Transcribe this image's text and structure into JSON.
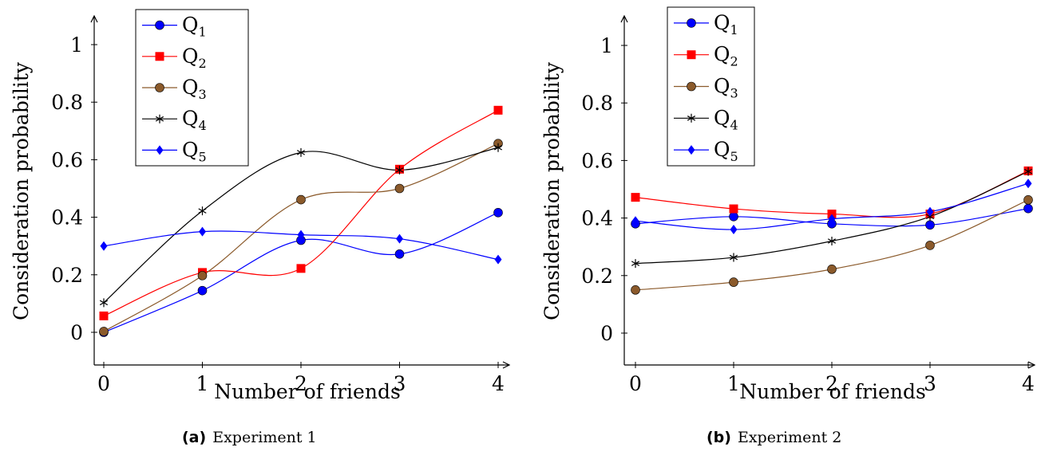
{
  "chart_data": [
    {
      "type": "line",
      "caption_tag": "(a)",
      "caption_text": "Experiment 1",
      "xlabel": "Number of friends",
      "ylabel": "Consideration probability",
      "x": [
        0,
        1,
        2,
        3,
        4
      ],
      "xlim": [
        -0.1,
        4.1
      ],
      "ylim": [
        -0.1,
        1.1
      ],
      "x_ticks": [
        "0",
        "1",
        "2",
        "3",
        "4"
      ],
      "y_ticks": [
        {
          "value": 0,
          "label": "0"
        },
        {
          "value": 0.2,
          "label": "0.2"
        },
        {
          "value": 0.4,
          "label": "0.4"
        },
        {
          "value": 0.6,
          "label": "0.6"
        },
        {
          "value": 0.8,
          "label": "0.8"
        },
        {
          "value": 1,
          "label": "1"
        }
      ],
      "grid": false,
      "smooth": true,
      "legend_position": "top-left",
      "series": [
        {
          "base": "Q",
          "sub": "1",
          "color": "#0000ff",
          "marker": "circle",
          "values": [
            0.0,
            0.145,
            0.32,
            0.272,
            0.416
          ]
        },
        {
          "base": "Q",
          "sub": "2",
          "color": "#ff0000",
          "marker": "square",
          "values": [
            0.057,
            0.208,
            0.222,
            0.567,
            0.772
          ]
        },
        {
          "base": "Q",
          "sub": "3",
          "color": "#8b5a2b",
          "marker": "circle",
          "values": [
            0.003,
            0.197,
            0.461,
            0.5,
            0.656
          ]
        },
        {
          "base": "Q",
          "sub": "4",
          "color": "#000000",
          "marker": "star",
          "values": [
            0.103,
            0.422,
            0.625,
            0.564,
            0.642
          ]
        },
        {
          "base": "Q",
          "sub": "5",
          "color": "#0000ff",
          "marker": "diamond",
          "values": [
            0.3,
            0.35,
            0.339,
            0.325,
            0.253
          ]
        }
      ]
    },
    {
      "type": "line",
      "caption_tag": "(b)",
      "caption_text": "Experiment 2",
      "xlabel": "Number of friends",
      "ylabel": "Consideration probability",
      "x": [
        0,
        1,
        2,
        3,
        4
      ],
      "xlim": [
        -0.1,
        4.1
      ],
      "ylim": [
        -0.1,
        1.1
      ],
      "x_ticks": [
        "0",
        "1",
        "2",
        "3",
        "4"
      ],
      "y_ticks": [
        {
          "value": 0,
          "label": "0"
        },
        {
          "value": 0.2,
          "label": "0.2"
        },
        {
          "value": 0.4,
          "label": "0.4"
        },
        {
          "value": 0.6,
          "label": "0.6"
        },
        {
          "value": 0.8,
          "label": "0.8"
        },
        {
          "value": 1,
          "label": "1"
        }
      ],
      "grid": false,
      "smooth": true,
      "legend_position": "top-left",
      "series": [
        {
          "base": "Q",
          "sub": "1",
          "color": "#0000ff",
          "marker": "circle",
          "values": [
            0.38,
            0.405,
            0.38,
            0.376,
            0.433
          ]
        },
        {
          "base": "Q",
          "sub": "2",
          "color": "#ff0000",
          "marker": "square",
          "values": [
            0.472,
            0.432,
            0.414,
            0.414,
            0.564
          ]
        },
        {
          "base": "Q",
          "sub": "3",
          "color": "#8b5a2b",
          "marker": "circle",
          "values": [
            0.15,
            0.177,
            0.222,
            0.305,
            0.463
          ]
        },
        {
          "base": "Q",
          "sub": "4",
          "color": "#000000",
          "marker": "star",
          "values": [
            0.242,
            0.263,
            0.32,
            0.405,
            0.562
          ]
        },
        {
          "base": "Q",
          "sub": "5",
          "color": "#0000ff",
          "marker": "diamond",
          "values": [
            0.39,
            0.36,
            0.397,
            0.422,
            0.52
          ]
        }
      ]
    }
  ]
}
